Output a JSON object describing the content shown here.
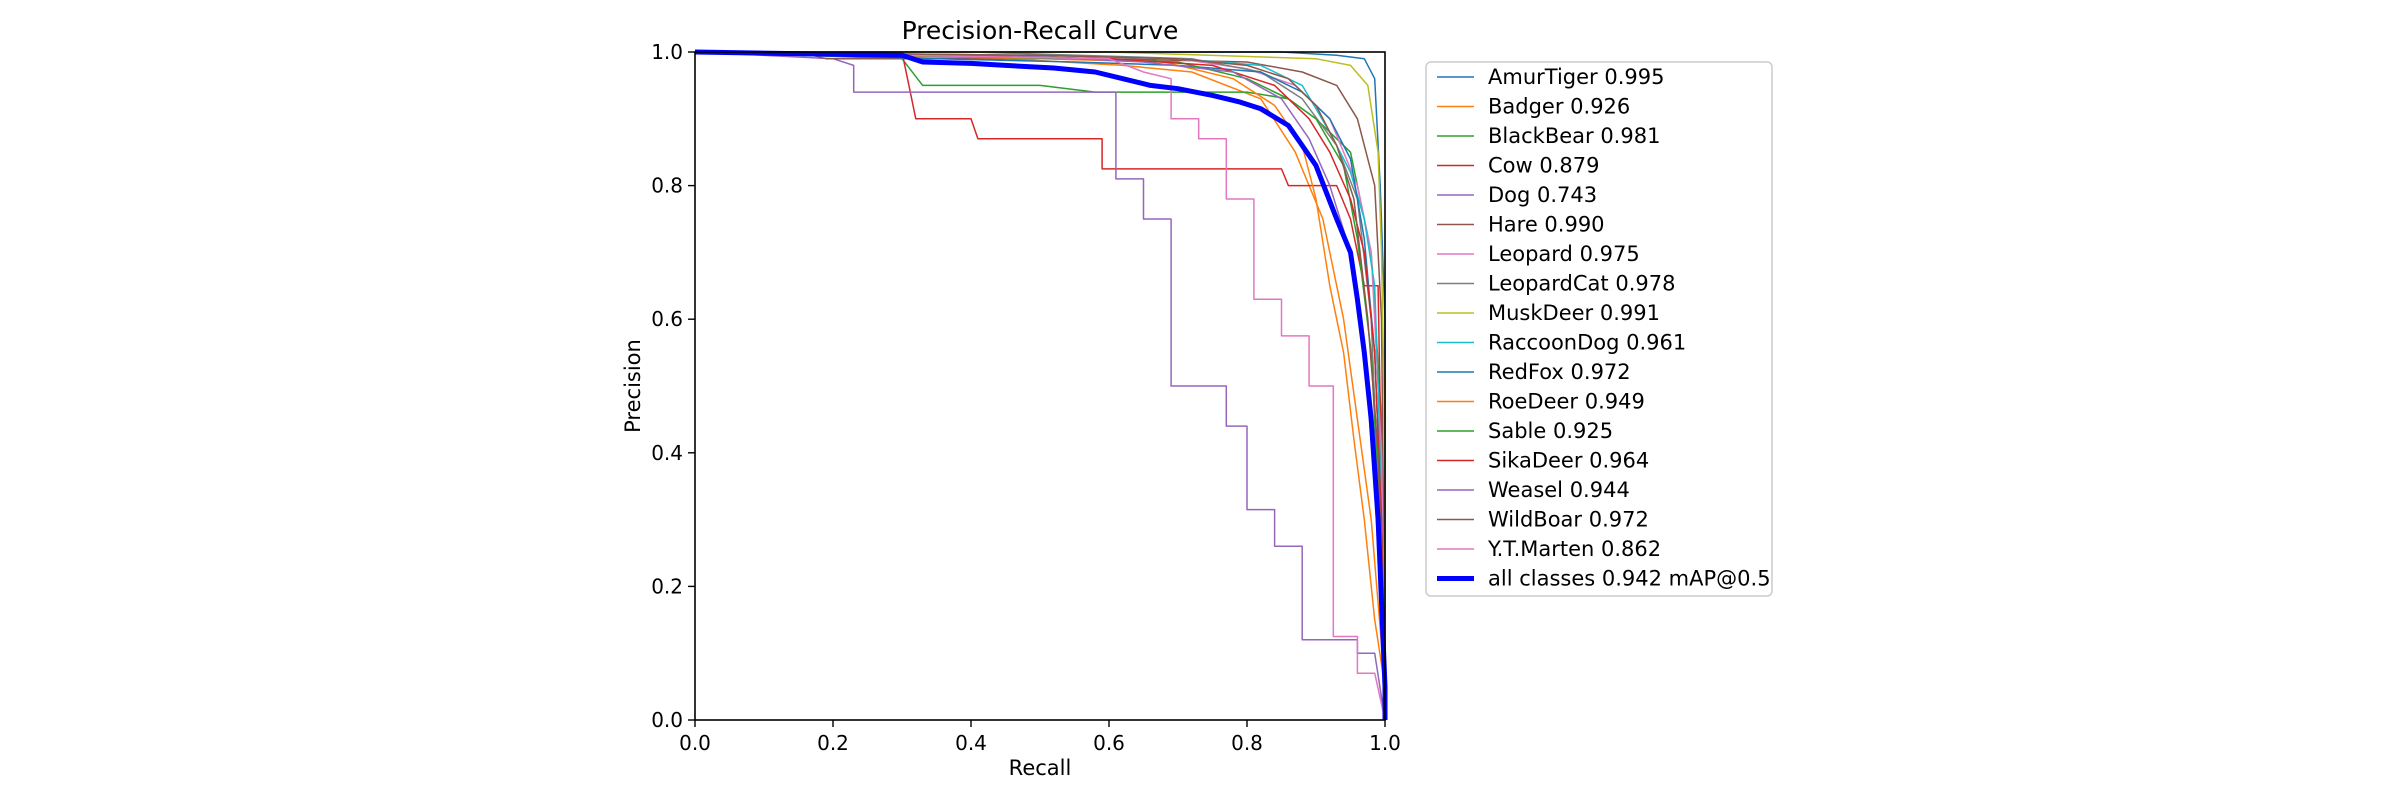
{
  "chart_data": {
    "type": "line",
    "title": "Precision-Recall Curve",
    "xlabel": "Recall",
    "ylabel": "Precision",
    "xlim": [
      0,
      1
    ],
    "ylim": [
      0,
      1
    ],
    "xticks": [
      "0.0",
      "0.2",
      "0.4",
      "0.6",
      "0.8",
      "1.0"
    ],
    "yticks": [
      "0.0",
      "0.2",
      "0.4",
      "0.6",
      "0.8",
      "1.0"
    ],
    "grid": false,
    "legend_position": "outside-right",
    "series": [
      {
        "name": "AmurTiger 0.995",
        "color": "#1f77b4",
        "width": 1.5,
        "points": [
          [
            0,
            1
          ],
          [
            0.85,
            1
          ],
          [
            0.93,
            0.995
          ],
          [
            0.97,
            0.99
          ],
          [
            0.985,
            0.96
          ],
          [
            0.993,
            0.8
          ],
          [
            1.0,
            0.6
          ],
          [
            1.0,
            0
          ]
        ]
      },
      {
        "name": "Badger 0.926",
        "color": "#ff7f0e",
        "width": 1.5,
        "points": [
          [
            0,
            1
          ],
          [
            0.45,
            0.99
          ],
          [
            0.62,
            0.98
          ],
          [
            0.72,
            0.97
          ],
          [
            0.82,
            0.93
          ],
          [
            0.87,
            0.85
          ],
          [
            0.91,
            0.75
          ],
          [
            0.94,
            0.6
          ],
          [
            0.96,
            0.45
          ],
          [
            0.98,
            0.3
          ],
          [
            1.0,
            0.05
          ],
          [
            1.0,
            0
          ]
        ]
      },
      {
        "name": "BlackBear 0.981",
        "color": "#2ca02c",
        "width": 1.5,
        "points": [
          [
            0,
            1
          ],
          [
            0.3,
            0.99
          ],
          [
            0.33,
            0.95
          ],
          [
            0.5,
            0.95
          ],
          [
            0.58,
            0.94
          ],
          [
            0.8,
            0.94
          ],
          [
            0.86,
            0.93
          ],
          [
            0.9,
            0.9
          ],
          [
            0.95,
            0.85
          ],
          [
            0.98,
            0.7
          ],
          [
            0.995,
            0.45
          ],
          [
            1.0,
            0.1
          ],
          [
            1.0,
            0
          ]
        ]
      },
      {
        "name": "Cow 0.879",
        "color": "#d62728",
        "width": 1.5,
        "points": [
          [
            0,
            1
          ],
          [
            0.3,
            1
          ],
          [
            0.32,
            0.9
          ],
          [
            0.4,
            0.9
          ],
          [
            0.41,
            0.87
          ],
          [
            0.59,
            0.87
          ],
          [
            0.59,
            0.825
          ],
          [
            0.85,
            0.825
          ],
          [
            0.86,
            0.8
          ],
          [
            0.93,
            0.8
          ],
          [
            0.95,
            0.75
          ],
          [
            0.97,
            0.65
          ],
          [
            0.99,
            0.65
          ],
          [
            1.0,
            0.05
          ],
          [
            1.0,
            0
          ]
        ]
      },
      {
        "name": "Dog 0.743",
        "color": "#9467bd",
        "width": 1.5,
        "points": [
          [
            0,
            1
          ],
          [
            0.2,
            0.99
          ],
          [
            0.23,
            0.98
          ],
          [
            0.23,
            0.94
          ],
          [
            0.61,
            0.94
          ],
          [
            0.61,
            0.81
          ],
          [
            0.65,
            0.81
          ],
          [
            0.65,
            0.75
          ],
          [
            0.69,
            0.75
          ],
          [
            0.69,
            0.5
          ],
          [
            0.77,
            0.5
          ],
          [
            0.77,
            0.44
          ],
          [
            0.8,
            0.44
          ],
          [
            0.8,
            0.315
          ],
          [
            0.84,
            0.315
          ],
          [
            0.84,
            0.26
          ],
          [
            0.88,
            0.26
          ],
          [
            0.88,
            0.12
          ],
          [
            0.96,
            0.12
          ],
          [
            0.96,
            0.1
          ],
          [
            0.985,
            0.1
          ],
          [
            1.0,
            0
          ]
        ]
      },
      {
        "name": "Hare 0.990",
        "color": "#8c564b",
        "width": 1.5,
        "points": [
          [
            0,
            1
          ],
          [
            0.17,
            0.995
          ],
          [
            0.19,
            0.99
          ],
          [
            0.6,
            0.99
          ],
          [
            0.8,
            0.985
          ],
          [
            0.88,
            0.97
          ],
          [
            0.93,
            0.95
          ],
          [
            0.96,
            0.9
          ],
          [
            0.985,
            0.8
          ],
          [
            0.995,
            0.6
          ],
          [
            1.0,
            0.1
          ],
          [
            1.0,
            0
          ]
        ]
      },
      {
        "name": "Leopard 0.975",
        "color": "#e377c2",
        "width": 1.5,
        "points": [
          [
            0,
            1
          ],
          [
            0.5,
            0.995
          ],
          [
            0.7,
            0.99
          ],
          [
            0.8,
            0.975
          ],
          [
            0.87,
            0.95
          ],
          [
            0.92,
            0.9
          ],
          [
            0.96,
            0.8
          ],
          [
            0.98,
            0.7
          ],
          [
            0.995,
            0.4
          ],
          [
            1.0,
            0.05
          ],
          [
            1.0,
            0
          ]
        ]
      },
      {
        "name": "LeopardCat 0.978",
        "color": "#7f7f7f",
        "width": 1.5,
        "points": [
          [
            0,
            1
          ],
          [
            0.4,
            1
          ],
          [
            0.72,
            0.99
          ],
          [
            0.82,
            0.97
          ],
          [
            0.88,
            0.93
          ],
          [
            0.93,
            0.86
          ],
          [
            0.96,
            0.78
          ],
          [
            0.98,
            0.6
          ],
          [
            0.99,
            0.35
          ],
          [
            1.0,
            0.05
          ],
          [
            1.0,
            0
          ]
        ]
      },
      {
        "name": "MuskDeer 0.991",
        "color": "#bcbd22",
        "width": 1.5,
        "points": [
          [
            0,
            1
          ],
          [
            0.6,
            1
          ],
          [
            0.9,
            0.99
          ],
          [
            0.95,
            0.98
          ],
          [
            0.975,
            0.95
          ],
          [
            0.99,
            0.85
          ],
          [
            0.995,
            0.7
          ],
          [
            1.0,
            0.4
          ],
          [
            1.0,
            0
          ]
        ]
      },
      {
        "name": "RaccoonDog 0.961",
        "color": "#17becf",
        "width": 1.5,
        "points": [
          [
            0,
            1
          ],
          [
            0.5,
            0.995
          ],
          [
            0.7,
            0.99
          ],
          [
            0.82,
            0.98
          ],
          [
            0.88,
            0.95
          ],
          [
            0.92,
            0.88
          ],
          [
            0.95,
            0.82
          ],
          [
            0.97,
            0.75
          ],
          [
            0.985,
            0.65
          ],
          [
            0.99,
            0.5
          ],
          [
            1.0,
            0.1
          ],
          [
            1.0,
            0
          ]
        ]
      },
      {
        "name": "RedFox 0.972",
        "color": "#1f77b4",
        "width": 1.5,
        "points": [
          [
            0,
            1
          ],
          [
            0.35,
            0.99
          ],
          [
            0.55,
            0.985
          ],
          [
            0.7,
            0.98
          ],
          [
            0.82,
            0.97
          ],
          [
            0.88,
            0.94
          ],
          [
            0.92,
            0.9
          ],
          [
            0.95,
            0.84
          ],
          [
            0.97,
            0.72
          ],
          [
            0.985,
            0.55
          ],
          [
            0.995,
            0.3
          ],
          [
            1.0,
            0.05
          ],
          [
            1.0,
            0
          ]
        ]
      },
      {
        "name": "RoeDeer 0.949",
        "color": "#ff7f0e",
        "width": 1.5,
        "points": [
          [
            0,
            1
          ],
          [
            0.5,
            0.99
          ],
          [
            0.68,
            0.985
          ],
          [
            0.78,
            0.96
          ],
          [
            0.84,
            0.92
          ],
          [
            0.88,
            0.86
          ],
          [
            0.9,
            0.78
          ],
          [
            0.92,
            0.65
          ],
          [
            0.94,
            0.55
          ],
          [
            0.955,
            0.42
          ],
          [
            0.97,
            0.3
          ],
          [
            0.985,
            0.15
          ],
          [
            1.0,
            0.05
          ],
          [
            1.0,
            0
          ]
        ]
      },
      {
        "name": "Sable 0.925",
        "color": "#2ca02c",
        "width": 1.5,
        "points": [
          [
            0,
            1
          ],
          [
            0.55,
            0.99
          ],
          [
            0.7,
            0.985
          ],
          [
            0.8,
            0.96
          ],
          [
            0.86,
            0.93
          ],
          [
            0.9,
            0.9
          ],
          [
            0.94,
            0.83
          ],
          [
            0.96,
            0.72
          ],
          [
            0.98,
            0.55
          ],
          [
            0.99,
            0.35
          ],
          [
            1.0,
            0.05
          ],
          [
            1.0,
            0
          ]
        ]
      },
      {
        "name": "SikaDeer 0.964",
        "color": "#d62728",
        "width": 1.5,
        "points": [
          [
            0,
            1
          ],
          [
            0.4,
            0.995
          ],
          [
            0.6,
            0.99
          ],
          [
            0.75,
            0.98
          ],
          [
            0.84,
            0.95
          ],
          [
            0.89,
            0.9
          ],
          [
            0.92,
            0.85
          ],
          [
            0.95,
            0.78
          ],
          [
            0.97,
            0.7
          ],
          [
            0.985,
            0.55
          ],
          [
            0.995,
            0.3
          ],
          [
            1.0,
            0.05
          ],
          [
            1.0,
            0
          ]
        ]
      },
      {
        "name": "Weasel 0.944",
        "color": "#9467bd",
        "width": 1.5,
        "points": [
          [
            0,
            1
          ],
          [
            0.45,
            0.995
          ],
          [
            0.65,
            0.985
          ],
          [
            0.78,
            0.97
          ],
          [
            0.85,
            0.93
          ],
          [
            0.89,
            0.87
          ],
          [
            0.92,
            0.8
          ],
          [
            0.95,
            0.7
          ],
          [
            0.97,
            0.55
          ],
          [
            0.985,
            0.35
          ],
          [
            0.995,
            0.15
          ],
          [
            1.0,
            0.05
          ],
          [
            1.0,
            0
          ]
        ]
      },
      {
        "name": "WildBoar 0.972",
        "color": "#8c564b",
        "width": 1.5,
        "points": [
          [
            0,
            1
          ],
          [
            0.5,
            0.995
          ],
          [
            0.7,
            0.99
          ],
          [
            0.8,
            0.98
          ],
          [
            0.86,
            0.96
          ],
          [
            0.9,
            0.92
          ],
          [
            0.93,
            0.86
          ],
          [
            0.955,
            0.78
          ],
          [
            0.975,
            0.6
          ],
          [
            0.99,
            0.4
          ],
          [
            1.0,
            0.1
          ],
          [
            1.0,
            0
          ]
        ]
      },
      {
        "name": "Y.T.Marten 0.862",
        "color": "#e377c2",
        "width": 1.5,
        "points": [
          [
            0,
            1
          ],
          [
            0.6,
            0.99
          ],
          [
            0.65,
            0.97
          ],
          [
            0.69,
            0.96
          ],
          [
            0.69,
            0.9
          ],
          [
            0.73,
            0.9
          ],
          [
            0.73,
            0.87
          ],
          [
            0.77,
            0.87
          ],
          [
            0.77,
            0.78
          ],
          [
            0.81,
            0.78
          ],
          [
            0.81,
            0.63
          ],
          [
            0.85,
            0.63
          ],
          [
            0.85,
            0.575
          ],
          [
            0.89,
            0.575
          ],
          [
            0.89,
            0.5
          ],
          [
            0.925,
            0.5
          ],
          [
            0.925,
            0.125
          ],
          [
            0.96,
            0.125
          ],
          [
            0.96,
            0.07
          ],
          [
            0.985,
            0.07
          ],
          [
            1.0,
            0
          ]
        ]
      },
      {
        "name": "all classes 0.942 mAP@0.5",
        "color": "#0000ff",
        "width": 5,
        "points": [
          [
            0,
            1
          ],
          [
            0.3,
            0.995
          ],
          [
            0.33,
            0.985
          ],
          [
            0.4,
            0.983
          ],
          [
            0.45,
            0.98
          ],
          [
            0.52,
            0.976
          ],
          [
            0.58,
            0.97
          ],
          [
            0.62,
            0.96
          ],
          [
            0.66,
            0.95
          ],
          [
            0.7,
            0.945
          ],
          [
            0.75,
            0.935
          ],
          [
            0.79,
            0.925
          ],
          [
            0.82,
            0.915
          ],
          [
            0.86,
            0.89
          ],
          [
            0.88,
            0.86
          ],
          [
            0.9,
            0.83
          ],
          [
            0.915,
            0.79
          ],
          [
            0.93,
            0.75
          ],
          [
            0.95,
            0.7
          ],
          [
            0.96,
            0.63
          ],
          [
            0.97,
            0.55
          ],
          [
            0.98,
            0.45
          ],
          [
            0.99,
            0.3
          ],
          [
            1.0,
            0.05
          ],
          [
            1.0,
            0
          ]
        ]
      }
    ]
  }
}
